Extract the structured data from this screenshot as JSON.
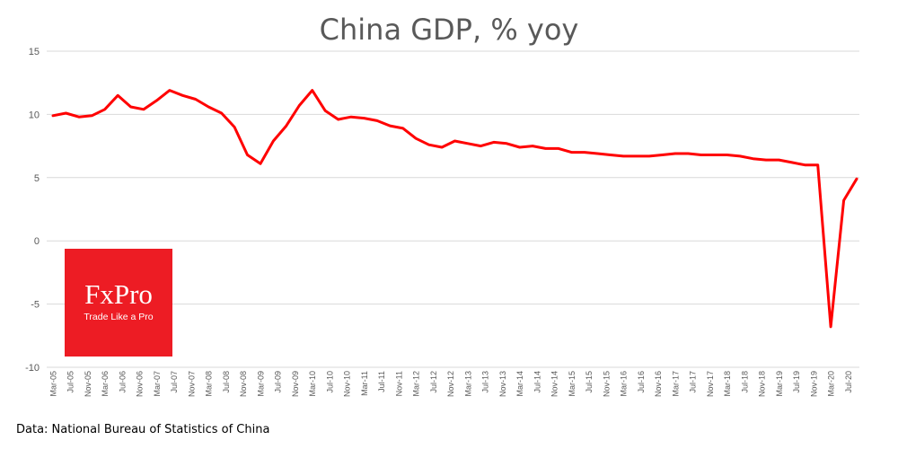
{
  "title": "China GDP, % yoy",
  "source_note": "Data: National Bureau of Statistics of China",
  "logo": {
    "name": "FxPro",
    "tagline": "Trade Like a Pro",
    "color": "#ed1c24"
  },
  "colors": {
    "line": "#ff0000",
    "grid": "#d9d9d9",
    "axis_text": "#595959",
    "title": "#595959"
  },
  "chart_data": {
    "type": "line",
    "title": "China GDP, % yoy",
    "xlabel": "",
    "ylabel": "",
    "ylim": [
      -10,
      15
    ],
    "yticks": [
      15,
      10,
      5,
      0,
      -5,
      -10
    ],
    "grid": true,
    "legend": "none",
    "tick_labels": [
      "Mar-05",
      "Jul-05",
      "Nov-05",
      "Mar-06",
      "Jul-06",
      "Nov-06",
      "Mar-07",
      "Jul-07",
      "Nov-07",
      "Mar-08",
      "Jul-08",
      "Nov-08",
      "Mar-09",
      "Jul-09",
      "Nov-09",
      "Mar-10",
      "Jul-10",
      "Nov-10",
      "Mar-11",
      "Jul-11",
      "Nov-11",
      "Mar-12",
      "Jul-12",
      "Nov-12",
      "Mar-13",
      "Jul-13",
      "Nov-13",
      "Mar-14",
      "Jul-14",
      "Nov-14",
      "Mar-15",
      "Jul-15",
      "Nov-15",
      "Mar-16",
      "Jul-16",
      "Nov-16",
      "Mar-17",
      "Jul-17",
      "Nov-17",
      "Mar-18",
      "Jul-18",
      "Nov-18",
      "Mar-19",
      "Jul-19",
      "Nov-19",
      "Mar-20",
      "Jul-20"
    ],
    "x": [
      "Mar-05",
      "Jun-05",
      "Sep-05",
      "Dec-05",
      "Mar-06",
      "Jun-06",
      "Sep-06",
      "Dec-06",
      "Mar-07",
      "Jun-07",
      "Sep-07",
      "Dec-07",
      "Mar-08",
      "Jun-08",
      "Sep-08",
      "Dec-08",
      "Mar-09",
      "Jun-09",
      "Sep-09",
      "Dec-09",
      "Mar-10",
      "Jun-10",
      "Sep-10",
      "Dec-10",
      "Mar-11",
      "Jun-11",
      "Sep-11",
      "Dec-11",
      "Mar-12",
      "Jun-12",
      "Sep-12",
      "Dec-12",
      "Mar-13",
      "Jun-13",
      "Sep-13",
      "Dec-13",
      "Mar-14",
      "Jun-14",
      "Sep-14",
      "Dec-14",
      "Mar-15",
      "Jun-15",
      "Sep-15",
      "Dec-15",
      "Mar-16",
      "Jun-16",
      "Sep-16",
      "Dec-16",
      "Mar-17",
      "Jun-17",
      "Sep-17",
      "Dec-17",
      "Mar-18",
      "Jun-18",
      "Sep-18",
      "Dec-18",
      "Mar-19",
      "Jun-19",
      "Sep-19",
      "Dec-19",
      "Mar-20",
      "Jun-20",
      "Sep-20"
    ],
    "series": [
      {
        "values": [
          9.9,
          10.1,
          9.8,
          9.9,
          10.4,
          11.5,
          10.6,
          10.4,
          11.1,
          11.9,
          11.5,
          11.2,
          10.6,
          10.1,
          9.0,
          6.8,
          6.1,
          7.9,
          9.1,
          10.7,
          11.9,
          10.3,
          9.6,
          9.8,
          9.7,
          9.5,
          9.1,
          8.9,
          8.1,
          7.6,
          7.4,
          7.9,
          7.7,
          7.5,
          7.8,
          7.7,
          7.4,
          7.5,
          7.3,
          7.3,
          7.0,
          7.0,
          6.9,
          6.8,
          6.7,
          6.7,
          6.7,
          6.8,
          6.9,
          6.9,
          6.8,
          6.8,
          6.8,
          6.7,
          6.5,
          6.4,
          6.4,
          6.2,
          6.0,
          6.0,
          -6.8,
          3.2,
          4.9
        ]
      }
    ]
  }
}
